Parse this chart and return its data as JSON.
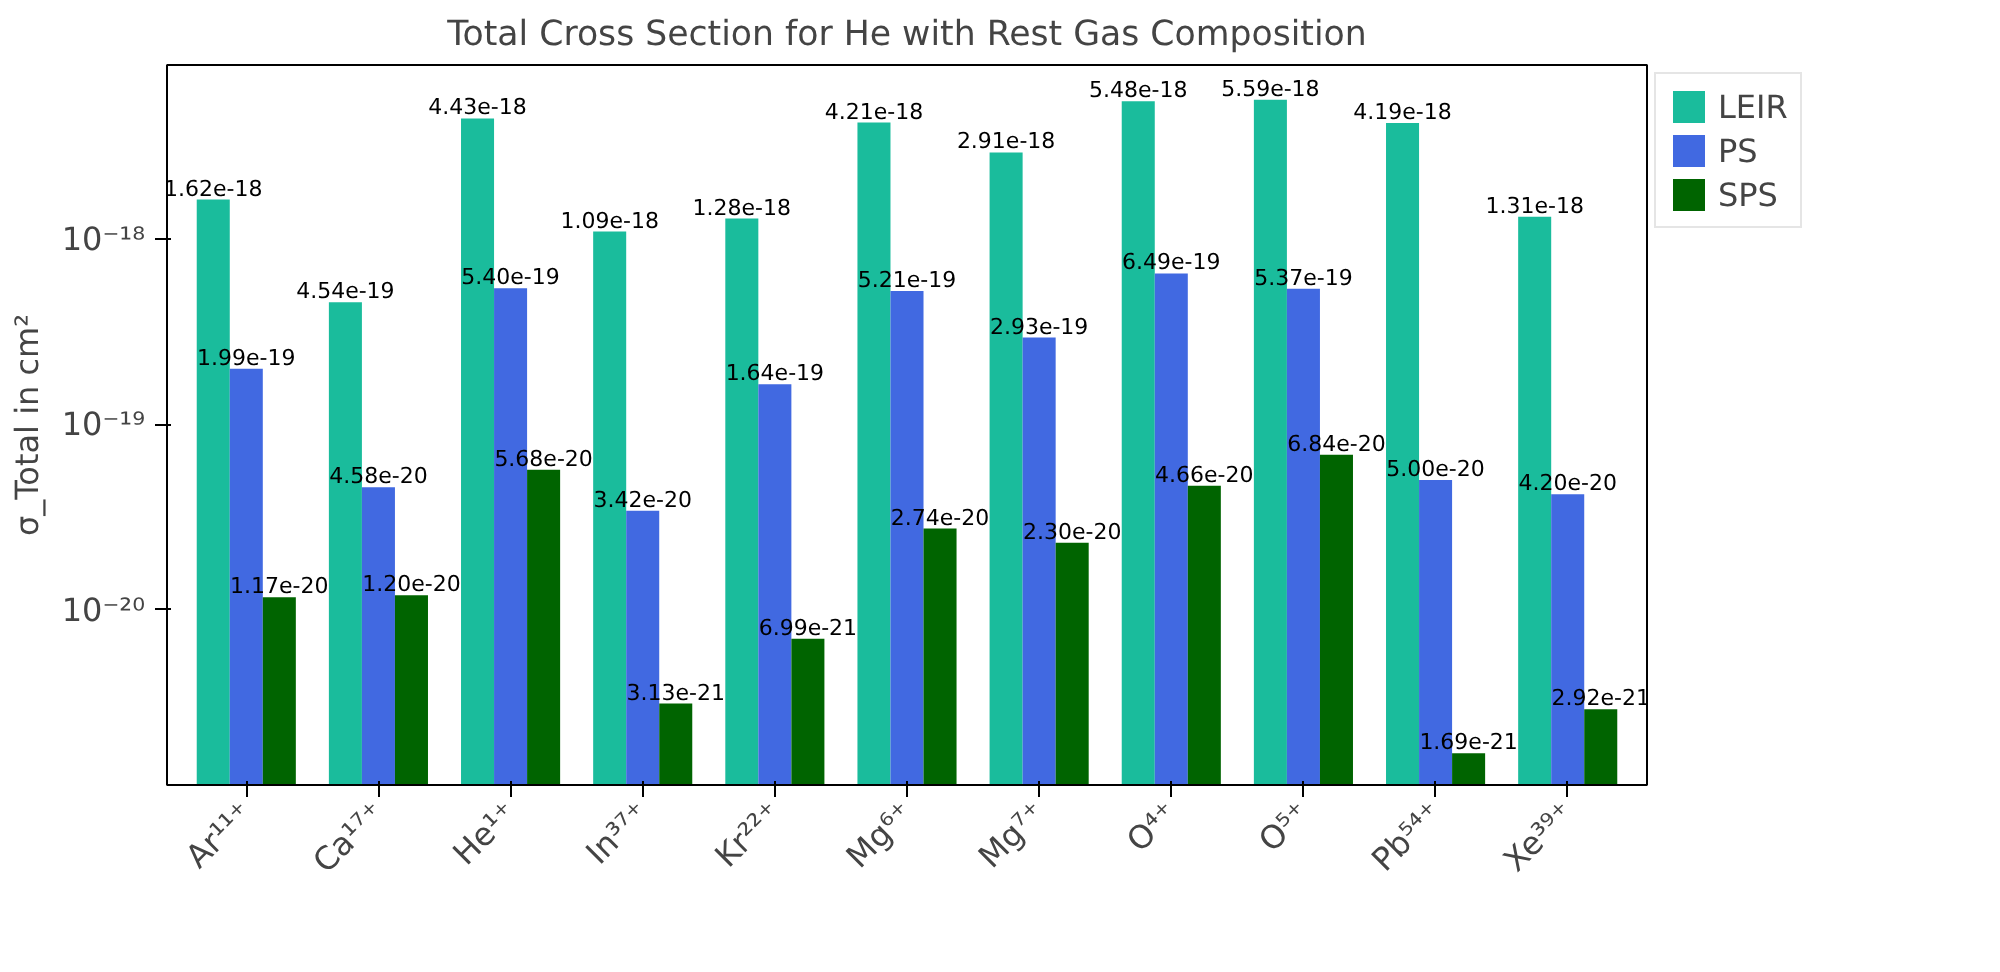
{
  "chart_data": {
    "type": "bar",
    "title": "Total Cross Section for He with Rest Gas Composition",
    "ylabel": "σ_Total in cm²",
    "categories": [
      "Ar¹¹⁺",
      "Ca¹⁷⁺",
      "He¹⁺",
      "In³⁷⁺",
      "Kr²²⁺",
      "Mg⁶⁺",
      "Mg⁷⁺",
      "O⁴⁺",
      "O⁵⁺",
      "Pb⁵⁴⁺",
      "Xe³⁹⁺"
    ],
    "series": [
      {
        "name": "LEIR",
        "color": "#1abc9c",
        "values": [
          1.62e-18,
          4.54e-19,
          4.43e-18,
          1.09e-18,
          1.28e-18,
          4.21e-18,
          2.91e-18,
          5.48e-18,
          5.59e-18,
          4.19e-18,
          1.31e-18
        ],
        "value_labels": [
          "1.62e-18",
          "4.54e-19",
          "4.43e-18",
          "1.09e-18",
          "1.28e-18",
          "4.21e-18",
          "2.91e-18",
          "5.48e-18",
          "5.59e-18",
          "4.19e-18",
          "1.31e-18"
        ]
      },
      {
        "name": "PS",
        "color": "#4169e1",
        "values": [
          1.99e-19,
          4.58e-20,
          5.4e-19,
          3.42e-20,
          1.64e-19,
          5.21e-19,
          2.93e-19,
          6.49e-19,
          5.37e-19,
          5e-20,
          4.2e-20
        ],
        "value_labels": [
          "1.99e-19",
          "4.58e-20",
          "5.40e-19",
          "3.42e-20",
          "1.64e-19",
          "5.21e-19",
          "2.93e-19",
          "6.49e-19",
          "5.37e-19",
          "5.00e-20",
          "4.20e-20"
        ]
      },
      {
        "name": "SPS",
        "color": "#006400",
        "values": [
          1.17e-20,
          1.2e-20,
          5.68e-20,
          3.13e-21,
          6.99e-21,
          2.74e-20,
          2.3e-20,
          4.66e-20,
          6.84e-20,
          1.69e-21,
          2.92e-21
        ],
        "value_labels": [
          "1.17e-20",
          "1.20e-20",
          "5.68e-20",
          "3.13e-21",
          "6.99e-21",
          "2.74e-20",
          "2.30e-20",
          "4.66e-20",
          "6.84e-20",
          "1.69e-21",
          "2.92e-21"
        ]
      }
    ],
    "log": true,
    "ylim": [
      1.14e-21,
      8.6e-18
    ],
    "yticks": [
      {
        "value": 1e-20,
        "label": "10⁻²⁰"
      },
      {
        "value": 1e-19,
        "label": "10⁻¹⁹"
      },
      {
        "value": 1e-18,
        "label": "10⁻¹⁸"
      }
    ],
    "data_labels": true,
    "legend": "top right",
    "grid": false
  }
}
